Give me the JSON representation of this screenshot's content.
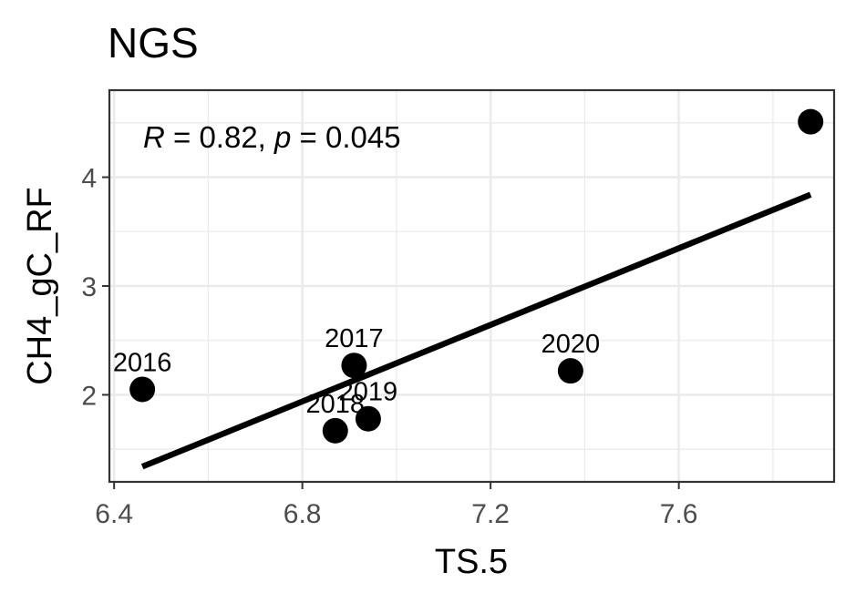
{
  "chart_data": {
    "type": "scatter",
    "title": "NGS",
    "xlabel": "TS.5",
    "ylabel": "CH4_gC_RF",
    "xlim": [
      6.39,
      7.93
    ],
    "ylim": [
      1.2,
      4.8
    ],
    "x_ticks": [
      6.4,
      6.8,
      7.2,
      7.6
    ],
    "x_tick_labels": [
      "6.4",
      "6.8",
      "7.2",
      "7.6"
    ],
    "y_ticks": [
      2,
      3,
      4
    ],
    "y_tick_labels": [
      "2",
      "3",
      "4"
    ],
    "grid": true,
    "points": [
      {
        "label": "2016",
        "x": 6.46,
        "y": 2.05
      },
      {
        "label": "2017",
        "x": 6.91,
        "y": 2.27
      },
      {
        "label": "2018",
        "x": 6.87,
        "y": 1.67
      },
      {
        "label": "2019",
        "x": 6.94,
        "y": 1.78
      },
      {
        "label": "2020",
        "x": 7.37,
        "y": 2.22
      },
      {
        "label": "",
        "x": 7.88,
        "y": 4.51
      }
    ],
    "regression_line": {
      "x": [
        6.46,
        7.88
      ],
      "y": [
        1.34,
        3.84
      ]
    },
    "annotation": {
      "r_symbol": "R",
      "r_text": " = 0.82, ",
      "p_symbol": "p",
      "p_text": " = 0.045"
    },
    "colors": {
      "points": "#000000",
      "line": "#000000",
      "grid": "#ebebeb",
      "panel_border": "#333333"
    }
  }
}
